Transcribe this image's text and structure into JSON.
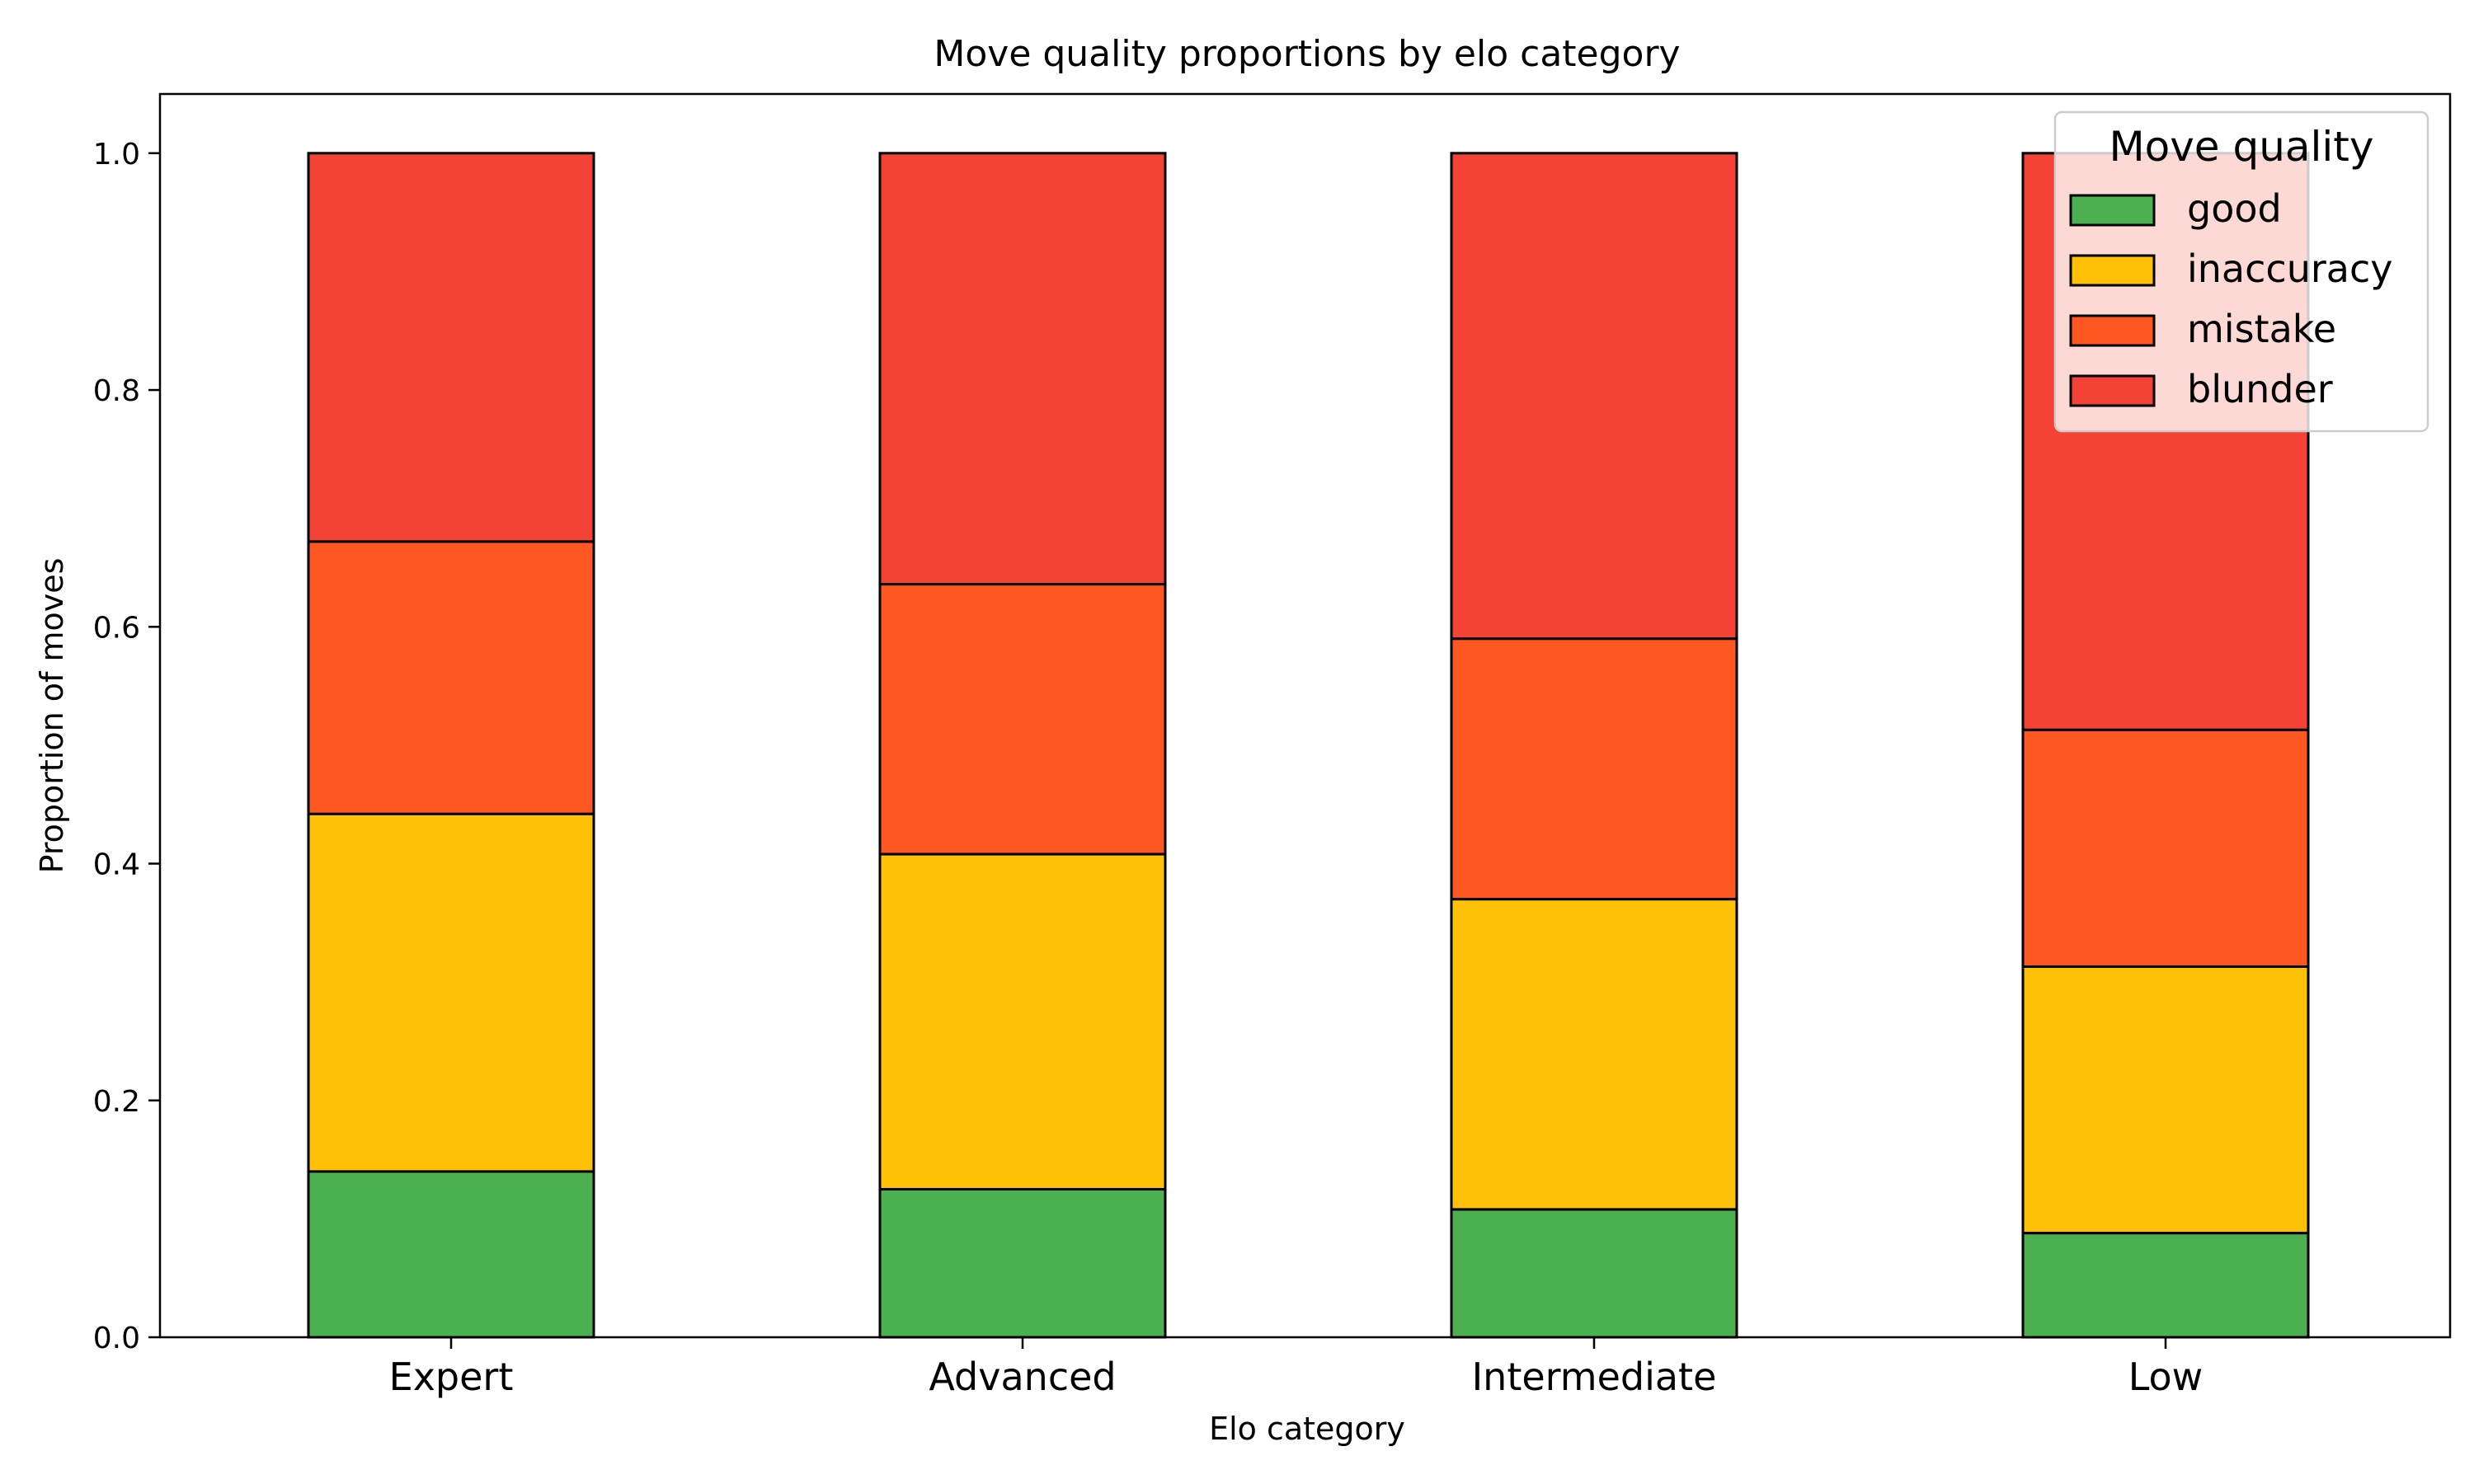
{
  "chart_data": {
    "type": "bar",
    "stacked": true,
    "title": "Move quality proportions by elo category",
    "xlabel": "Elo category",
    "ylabel": "Proportion of moves",
    "ylim": [
      0,
      1.05
    ],
    "yticks": [
      "0.0",
      "0.2",
      "0.4",
      "0.6",
      "0.8",
      "1.0"
    ],
    "categories": [
      "Expert",
      "Advanced",
      "Intermediate",
      "Low"
    ],
    "series": [
      {
        "name": "good",
        "color": "#4caf50",
        "values": [
          0.14,
          0.125,
          0.108,
          0.088
        ]
      },
      {
        "name": "inaccuracy",
        "color": "#ffc107",
        "values": [
          0.302,
          0.283,
          0.262,
          0.225
        ]
      },
      {
        "name": "mistake",
        "color": "#ff5722",
        "values": [
          0.23,
          0.228,
          0.22,
          0.2
        ]
      },
      {
        "name": "blunder",
        "color": "#f44336",
        "values": [
          0.328,
          0.364,
          0.41,
          0.487
        ]
      }
    ],
    "legend": {
      "title": "Move quality",
      "position": "top-right"
    },
    "grid": false
  }
}
